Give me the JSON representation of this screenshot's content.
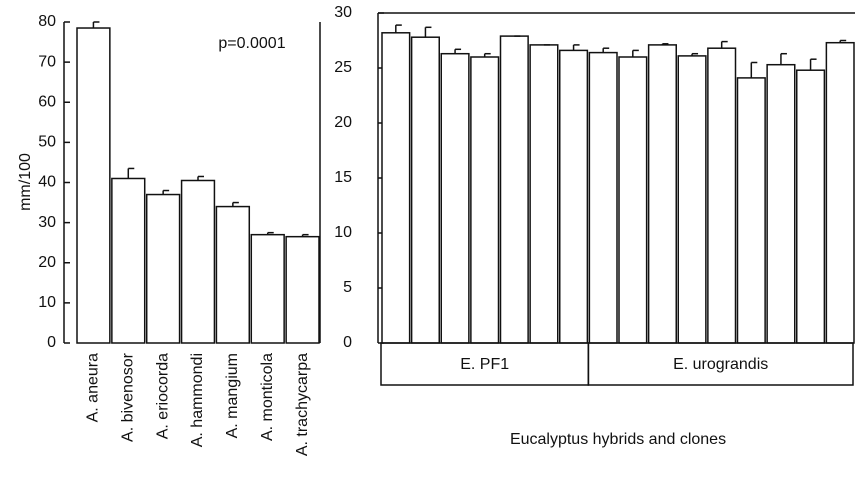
{
  "chart_data": [
    {
      "type": "bar",
      "ylabel": "mm/100",
      "annotation": "p=0.0001",
      "categories": [
        "A. aneura",
        "A. bivenosor",
        "A. eriocorda",
        "A. hammondi",
        "A. mangium",
        "A. monticola",
        "A. trachycarpa"
      ],
      "values": [
        78.5,
        41,
        37,
        40.5,
        34,
        27,
        26.5
      ],
      "errors": [
        1.5,
        2.5,
        1,
        1,
        1,
        0.5,
        0.5
      ],
      "color": "#ffffff",
      "ylim": [
        0,
        80
      ],
      "yticks": [
        0,
        10,
        20,
        30,
        40,
        50,
        60,
        70,
        80
      ]
    },
    {
      "type": "bar",
      "xlabel": "Eucalyptus hybrids and clones",
      "categories": [
        null,
        null,
        null,
        null,
        null,
        null,
        null,
        null,
        null,
        null,
        null,
        null,
        null,
        null,
        null,
        null
      ],
      "values": [
        28.2,
        27.8,
        26.3,
        26,
        27.9,
        27.1,
        26.6,
        26.4,
        26,
        27.1,
        26.1,
        26.8,
        24.1,
        25.3,
        24.8,
        27.3
      ],
      "errors": [
        0.7,
        0.9,
        0.4,
        0.3,
        0,
        0,
        0.5,
        0.4,
        0.6,
        0.1,
        0.2,
        0.6,
        1.4,
        1,
        1,
        0.2
      ],
      "groups": [
        {
          "label": "E. PF1",
          "count": 7
        },
        {
          "label": "E. urograndis",
          "count": 9
        }
      ],
      "color": "#ffffff",
      "ylim": [
        0,
        30
      ],
      "yticks": [
        0,
        5,
        10,
        15,
        20,
        25,
        30
      ]
    }
  ]
}
